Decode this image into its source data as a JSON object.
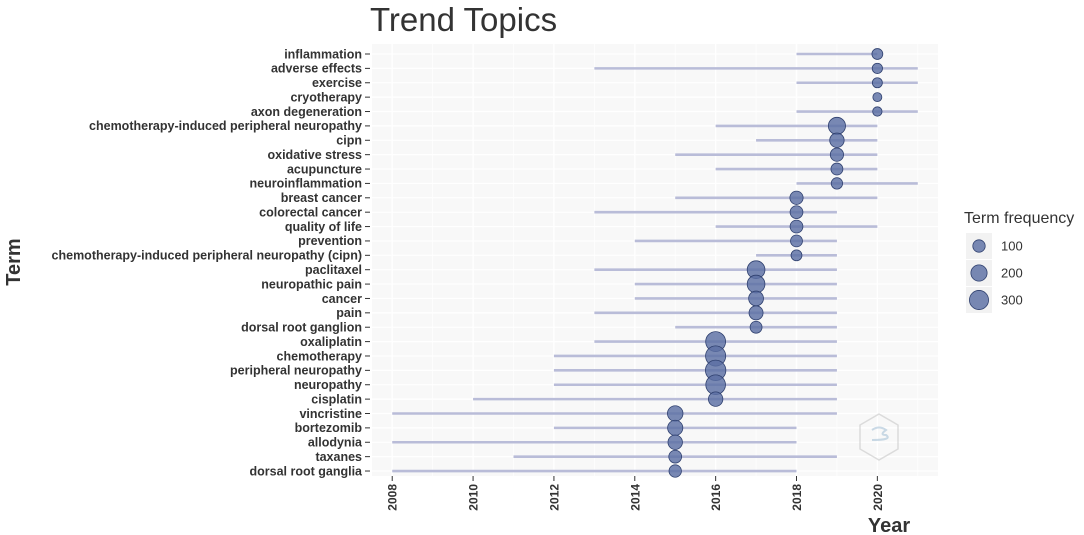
{
  "chart_data": {
    "type": "scatter",
    "title": "Trend Topics",
    "xlabel": "Year",
    "ylabel": "Term",
    "xlim": [
      2007.5,
      2021.5
    ],
    "x_ticks": [
      "2008",
      "2010",
      "2012",
      "2014",
      "2016",
      "2018",
      "2020"
    ],
    "grid": true,
    "legend": {
      "title": "Term frequency",
      "placement": "right",
      "entries": [
        {
          "label": "100",
          "value": 100
        },
        {
          "label": "200",
          "value": 200
        },
        {
          "label": "300",
          "value": 300
        }
      ]
    },
    "colors": {
      "point_fill": "#5b6fa3",
      "point_stroke": "#2e3f6e",
      "range_line": "#b9bcd8",
      "panel": "#f8f8f8",
      "grid": "#ffffff"
    },
    "terms": [
      {
        "term": "inflammation",
        "year_q1": 2018,
        "year_median": 2020,
        "year_q3": 2020,
        "freq": 70
      },
      {
        "term": "adverse effects",
        "year_q1": 2013,
        "year_median": 2020,
        "year_q3": 2021,
        "freq": 60
      },
      {
        "term": "exercise",
        "year_q1": 2018,
        "year_median": 2020,
        "year_q3": 2021,
        "freq": 55
      },
      {
        "term": "cryotherapy",
        "year_q1": 2020,
        "year_median": 2020,
        "year_q3": 2020,
        "freq": 40
      },
      {
        "term": "axon degeneration",
        "year_q1": 2018,
        "year_median": 2020,
        "year_q3": 2021,
        "freq": 45
      },
      {
        "term": "chemotherapy-induced peripheral neuropathy",
        "year_q1": 2016,
        "year_median": 2019,
        "year_q3": 2020,
        "freq": 230
      },
      {
        "term": "cipn",
        "year_q1": 2017,
        "year_median": 2019,
        "year_q3": 2020,
        "freq": 150
      },
      {
        "term": "oxidative stress",
        "year_q1": 2015,
        "year_median": 2019,
        "year_q3": 2020,
        "freq": 120
      },
      {
        "term": "acupuncture",
        "year_q1": 2016,
        "year_median": 2019,
        "year_q3": 2020,
        "freq": 90
      },
      {
        "term": "neuroinflammation",
        "year_q1": 2018,
        "year_median": 2019,
        "year_q3": 2021,
        "freq": 80
      },
      {
        "term": "breast cancer",
        "year_q1": 2015,
        "year_median": 2018,
        "year_q3": 2020,
        "freq": 120
      },
      {
        "term": "colorectal cancer",
        "year_q1": 2013,
        "year_median": 2018,
        "year_q3": 2019,
        "freq": 110
      },
      {
        "term": "quality of life",
        "year_q1": 2016,
        "year_median": 2018,
        "year_q3": 2020,
        "freq": 110
      },
      {
        "term": "prevention",
        "year_q1": 2014,
        "year_median": 2018,
        "year_q3": 2019,
        "freq": 90
      },
      {
        "term": "chemotherapy-induced peripheral neuropathy (cipn)",
        "year_q1": 2017,
        "year_median": 2018,
        "year_q3": 2019,
        "freq": 70
      },
      {
        "term": "paclitaxel",
        "year_q1": 2013,
        "year_median": 2017,
        "year_q3": 2019,
        "freq": 250
      },
      {
        "term": "neuropathic pain",
        "year_q1": 2014,
        "year_median": 2017,
        "year_q3": 2019,
        "freq": 250
      },
      {
        "term": "cancer",
        "year_q1": 2014,
        "year_median": 2017,
        "year_q3": 2019,
        "freq": 160
      },
      {
        "term": "pain",
        "year_q1": 2013,
        "year_median": 2017,
        "year_q3": 2019,
        "freq": 140
      },
      {
        "term": "dorsal root ganglion",
        "year_q1": 2015,
        "year_median": 2017,
        "year_q3": 2019,
        "freq": 90
      },
      {
        "term": "oxaliplatin",
        "year_q1": 2013,
        "year_median": 2016,
        "year_q3": 2019,
        "freq": 330
      },
      {
        "term": "chemotherapy",
        "year_q1": 2012,
        "year_median": 2016,
        "year_q3": 2019,
        "freq": 340
      },
      {
        "term": "peripheral neuropathy",
        "year_q1": 2012,
        "year_median": 2016,
        "year_q3": 2019,
        "freq": 350
      },
      {
        "term": "neuropathy",
        "year_q1": 2012,
        "year_median": 2016,
        "year_q3": 2019,
        "freq": 320
      },
      {
        "term": "cisplatin",
        "year_q1": 2010,
        "year_median": 2016,
        "year_q3": 2019,
        "freq": 150
      },
      {
        "term": "vincristine",
        "year_q1": 2008,
        "year_median": 2015,
        "year_q3": 2019,
        "freq": 180
      },
      {
        "term": "bortezomib",
        "year_q1": 2012,
        "year_median": 2015,
        "year_q3": 2018,
        "freq": 170
      },
      {
        "term": "allodynia",
        "year_q1": 2008,
        "year_median": 2015,
        "year_q3": 2018,
        "freq": 150
      },
      {
        "term": "taxanes",
        "year_q1": 2011,
        "year_median": 2015,
        "year_q3": 2019,
        "freq": 110
      },
      {
        "term": "dorsal root ganglia",
        "year_q1": 2008,
        "year_median": 2015,
        "year_q3": 2018,
        "freq": 100
      }
    ]
  }
}
